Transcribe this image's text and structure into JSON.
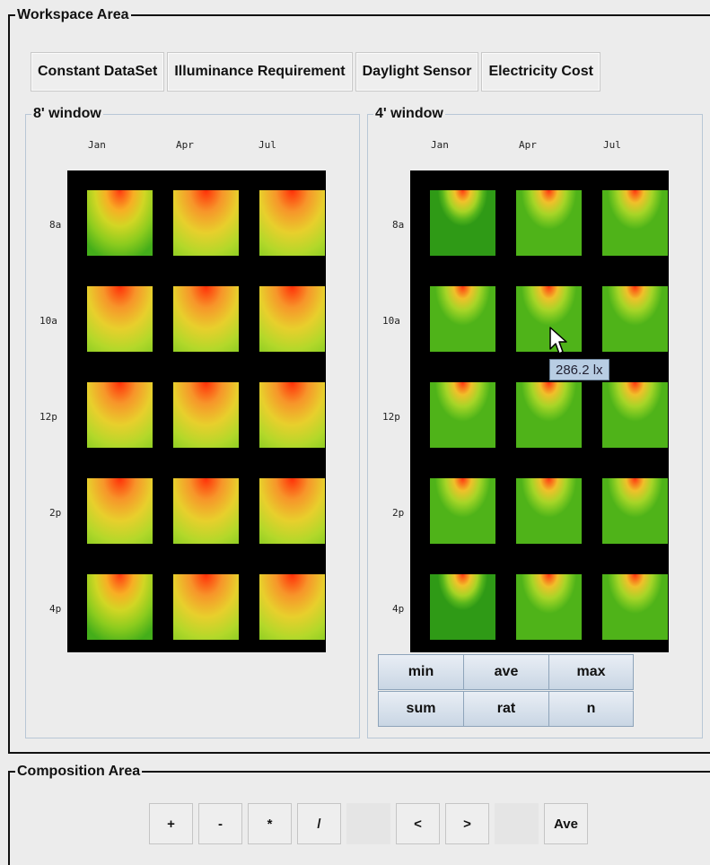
{
  "workspace": {
    "legend": "Workspace Area",
    "tabs": [
      "Constant DataSet",
      "Illuminance Requirement",
      "Daylight Sensor",
      "Electricity Cost"
    ],
    "panels": [
      {
        "title": "8' window",
        "months": [
          "Jan",
          "Apr",
          "Jul"
        ],
        "hours": [
          "8a",
          "10a",
          "12p",
          "2p",
          "4p"
        ]
      },
      {
        "title": "4' window",
        "months": [
          "Jan",
          "Apr",
          "Jul"
        ],
        "hours": [
          "8a",
          "10a",
          "12p",
          "2p",
          "4p"
        ]
      }
    ],
    "tooltip": "286.2 lx",
    "ops": [
      "min",
      "ave",
      "max",
      "sum",
      "rat",
      "n"
    ]
  },
  "composition": {
    "legend": "Composition Area",
    "buttons": [
      "+",
      "-",
      "*",
      "/",
      "",
      "<",
      ">",
      "",
      "Ave"
    ]
  }
}
